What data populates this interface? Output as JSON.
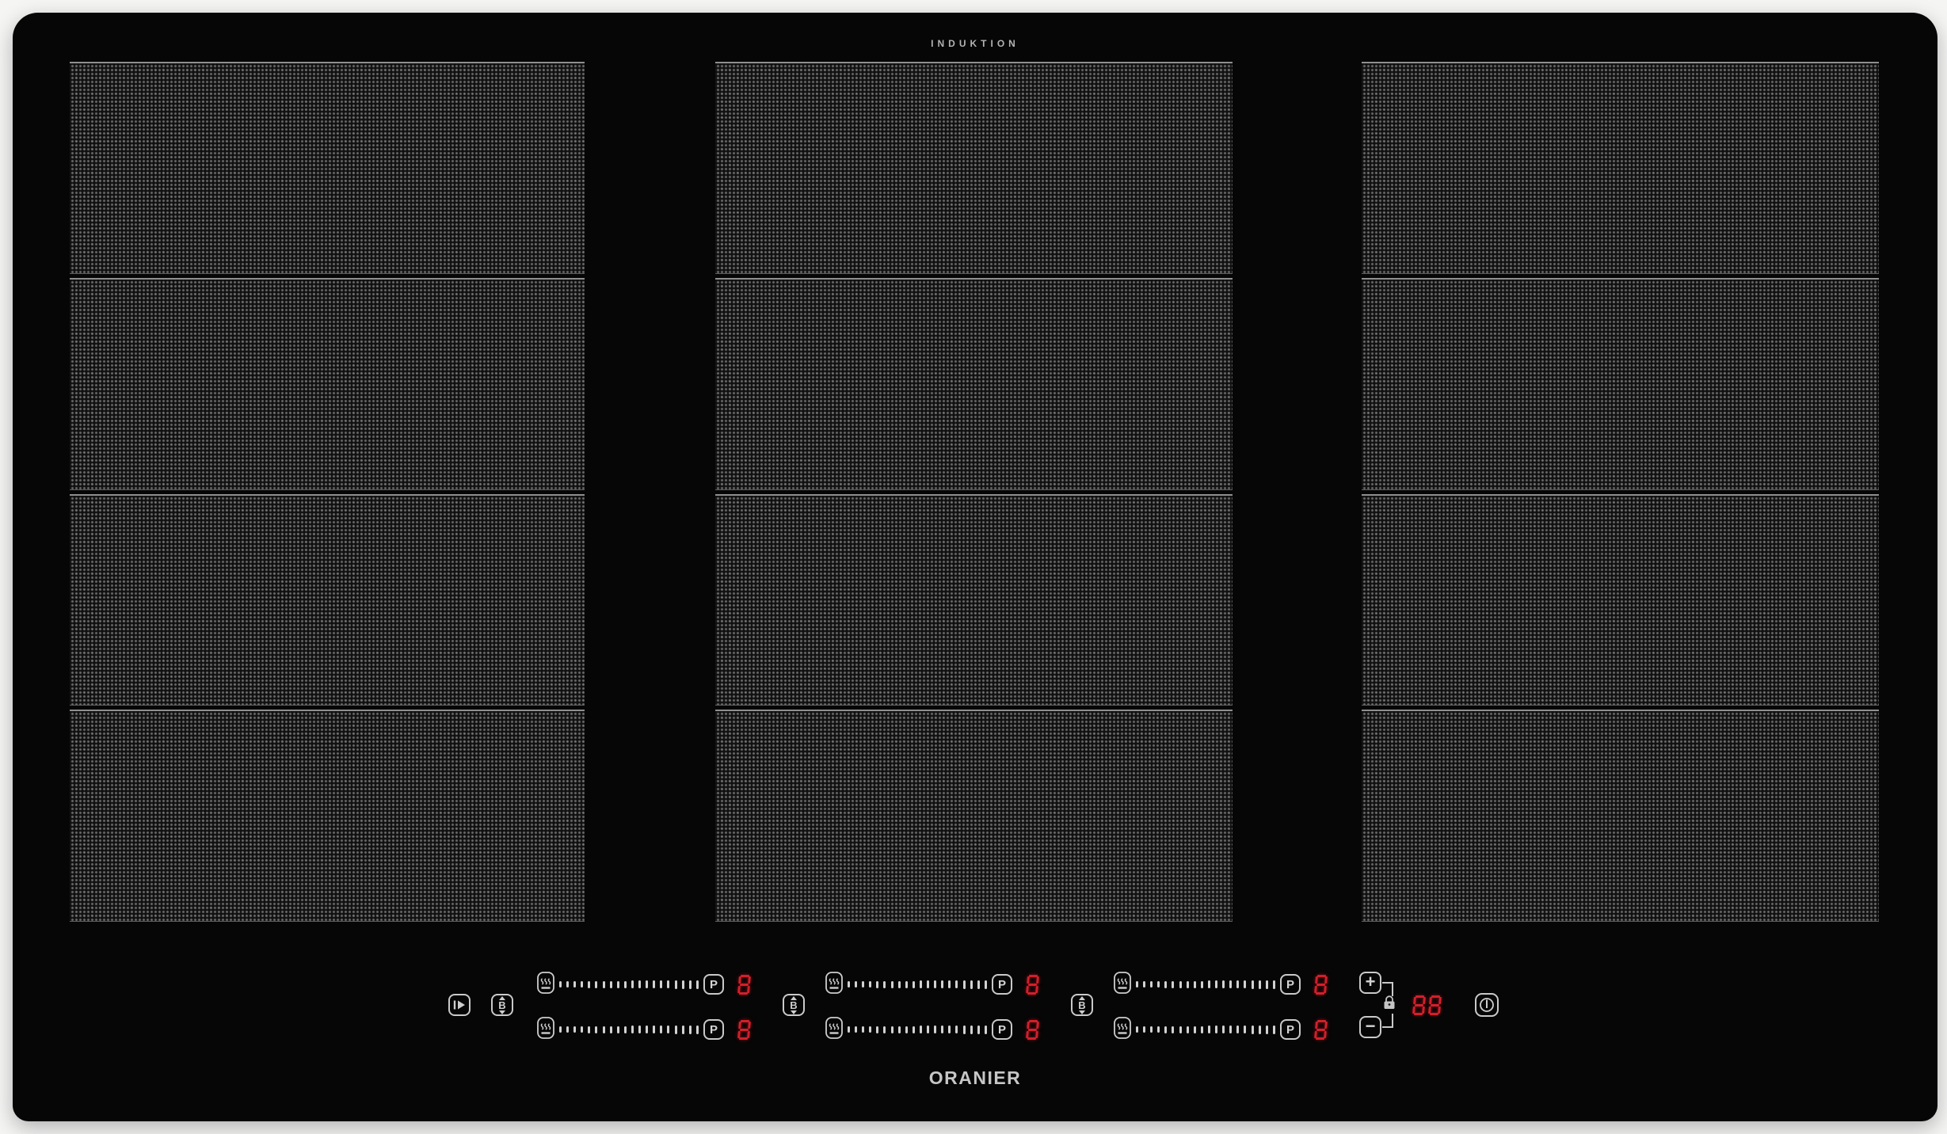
{
  "header": {
    "label": "INDUKTION"
  },
  "footer": {
    "brand": "ORANIER"
  },
  "colors": {
    "glass": "#060606",
    "background": "#f5f5f4",
    "icon_gray": "#cdcdcd",
    "display_red": "#d2202c"
  },
  "surface": {
    "zone_columns": [
      {
        "name": "left-flex-zone",
        "segments": 4
      },
      {
        "name": "middle-flex-zone",
        "segments": 4
      },
      {
        "name": "right-flex-zone",
        "segments": 4
      }
    ]
  },
  "controls": {
    "pause_icon": "stop-and-go",
    "bridge": {
      "letter": "B",
      "icon": "bridge-zones"
    },
    "slider_tick_count": 20,
    "groups": [
      {
        "name": "left-zone-controls",
        "rows": [
          {
            "icon": "keep-warm",
            "boost_label": "P",
            "level_display": "8"
          },
          {
            "icon": "keep-warm",
            "boost_label": "P",
            "level_display": "8"
          }
        ]
      },
      {
        "name": "middle-zone-controls",
        "rows": [
          {
            "icon": "keep-warm",
            "boost_label": "P",
            "level_display": "8"
          },
          {
            "icon": "keep-warm",
            "boost_label": "P",
            "level_display": "8"
          }
        ]
      },
      {
        "name": "right-zone-controls",
        "rows": [
          {
            "icon": "keep-warm",
            "boost_label": "P",
            "level_display": "8"
          },
          {
            "icon": "keep-warm",
            "boost_label": "P",
            "level_display": "8"
          }
        ]
      }
    ],
    "timer": {
      "plus_label": "+",
      "minus_label": "−",
      "lock_icon": "padlock",
      "display": "88"
    },
    "power_icon": "standby"
  }
}
